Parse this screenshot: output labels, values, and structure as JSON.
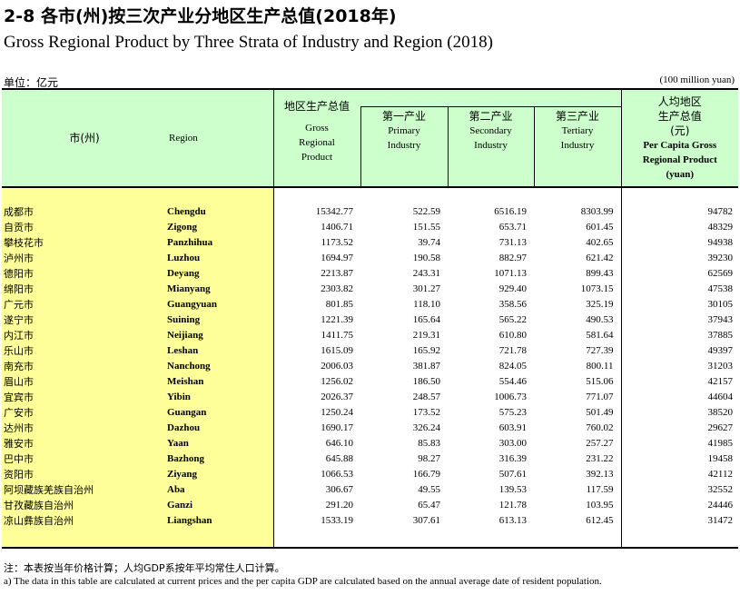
{
  "title_cn": "2-8 各市(州)按三次产业分地区生产总值(2018年)",
  "title_en": "Gross Regional Product  by Three Strata of Industry and Region (2018)",
  "unit_cn": "单位：亿元",
  "unit_en": "(100 million yuan)",
  "headers": {
    "city_cn": "市(州)",
    "region_en": "Region",
    "grp_cn": "地区生产总值",
    "grp_en_1": "Gross",
    "grp_en_2": "Regional",
    "grp_en_3": "Product",
    "primary_cn": "第一产业",
    "primary_en_1": "Primary",
    "primary_en_2": "Industry",
    "secondary_cn": "第二产业",
    "secondary_en_1": "Secondary",
    "secondary_en_2": "Industry",
    "tertiary_cn": "第三产业",
    "tertiary_en_1": "Tertiary",
    "tertiary_en_2": "Industry",
    "percap_cn_1": "人均地区",
    "percap_cn_2": "生产总值",
    "percap_cn_3": "(元)",
    "percap_en_1": "Per Capita Gross",
    "percap_en_2": "Regional Product",
    "percap_en_3": "(yuan)"
  },
  "rows": [
    {
      "city": "成都市",
      "region": "Chengdu",
      "grp": "15342.77",
      "primary": "522.59",
      "secondary": "6516.19",
      "tertiary": "8303.99",
      "percap": "94782"
    },
    {
      "city": "自贡市",
      "region": "Zigong",
      "grp": "1406.71",
      "primary": "151.55",
      "secondary": "653.71",
      "tertiary": "601.45",
      "percap": "48329"
    },
    {
      "city": "攀枝花市",
      "region": "Panzhihua",
      "grp": "1173.52",
      "primary": "39.74",
      "secondary": "731.13",
      "tertiary": "402.65",
      "percap": "94938"
    },
    {
      "city": "泸州市",
      "region": "Luzhou",
      "grp": "1694.97",
      "primary": "190.58",
      "secondary": "882.97",
      "tertiary": "621.42",
      "percap": "39230"
    },
    {
      "city": "德阳市",
      "region": "Deyang",
      "grp": "2213.87",
      "primary": "243.31",
      "secondary": "1071.13",
      "tertiary": "899.43",
      "percap": "62569"
    },
    {
      "city": "绵阳市",
      "region": "Mianyang",
      "grp": "2303.82",
      "primary": "301.27",
      "secondary": "929.40",
      "tertiary": "1073.15",
      "percap": "47538"
    },
    {
      "city": "广元市",
      "region": "Guangyuan",
      "grp": "801.85",
      "primary": "118.10",
      "secondary": "358.56",
      "tertiary": "325.19",
      "percap": "30105"
    },
    {
      "city": "遂宁市",
      "region": "Suining",
      "grp": "1221.39",
      "primary": "165.64",
      "secondary": "565.22",
      "tertiary": "490.53",
      "percap": "37943"
    },
    {
      "city": "内江市",
      "region": "Neijiang",
      "grp": "1411.75",
      "primary": "219.31",
      "secondary": "610.80",
      "tertiary": "581.64",
      "percap": "37885"
    },
    {
      "city": "乐山市",
      "region": "Leshan",
      "grp": "1615.09",
      "primary": "165.92",
      "secondary": "721.78",
      "tertiary": "727.39",
      "percap": "49397"
    },
    {
      "city": "南充市",
      "region": "Nanchong",
      "grp": "2006.03",
      "primary": "381.87",
      "secondary": "824.05",
      "tertiary": "800.11",
      "percap": "31203"
    },
    {
      "city": "眉山市",
      "region": "Meishan",
      "grp": "1256.02",
      "primary": "186.50",
      "secondary": "554.46",
      "tertiary": "515.06",
      "percap": "42157"
    },
    {
      "city": "宜宾市",
      "region": "Yibin",
      "grp": "2026.37",
      "primary": "248.57",
      "secondary": "1006.73",
      "tertiary": "771.07",
      "percap": "44604"
    },
    {
      "city": "广安市",
      "region": "Guangan",
      "grp": "1250.24",
      "primary": "173.52",
      "secondary": "575.23",
      "tertiary": "501.49",
      "percap": "38520"
    },
    {
      "city": "达州市",
      "region": "Dazhou",
      "grp": "1690.17",
      "primary": "326.24",
      "secondary": "603.91",
      "tertiary": "760.02",
      "percap": "29627"
    },
    {
      "city": "雅安市",
      "region": "Yaan",
      "grp": "646.10",
      "primary": "85.83",
      "secondary": "303.00",
      "tertiary": "257.27",
      "percap": "41985"
    },
    {
      "city": "巴中市",
      "region": "Bazhong",
      "grp": "645.88",
      "primary": "98.27",
      "secondary": "316.39",
      "tertiary": "231.22",
      "percap": "19458"
    },
    {
      "city": "资阳市",
      "region": "Ziyang",
      "grp": "1066.53",
      "primary": "166.79",
      "secondary": "507.61",
      "tertiary": "392.13",
      "percap": "42112"
    },
    {
      "city": "阿坝藏族羌族自治州",
      "region": "Aba",
      "grp": "306.67",
      "primary": "49.55",
      "secondary": "139.53",
      "tertiary": "117.59",
      "percap": "32552"
    },
    {
      "city": "甘孜藏族自治州",
      "region": "Ganzi",
      "grp": "291.20",
      "primary": "65.47",
      "secondary": "121.78",
      "tertiary": "103.95",
      "percap": "24446"
    },
    {
      "city": "凉山彝族自治州",
      "region": "Liangshan",
      "grp": "1533.19",
      "primary": "307.61",
      "secondary": "613.13",
      "tertiary": "612.45",
      "percap": "31472"
    }
  ],
  "note_cn": "注：本表按当年价格计算；人均GDP系按年平均常住人口计算。",
  "note_en": "a) The data in this table are calculated at current prices and the per capita GDP are calculated based on the annual average date of resident population."
}
